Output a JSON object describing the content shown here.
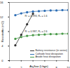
{
  "chart_data": {
    "type": "line",
    "x_label": "Air flow (L/min)",
    "y_label": "Resistance (mΩ)",
    "x": [
      1,
      2,
      3,
      4,
      5,
      6,
      7,
      8,
      9,
      10
    ],
    "series": [
      {
        "name": "Battery resistance (in series)",
        "color": "#333333",
        "marker": "circle",
        "values": [
          4.2,
          7.1,
          10,
          12.9,
          null,
          null,
          null,
          null,
          null,
          null
        ]
      },
      {
        "name": "Cathode heat dissipation",
        "color": "#2f6fb5",
        "marker": "circle",
        "values": [
          12.5,
          13,
          13.3,
          13.5,
          13.6,
          13.7,
          13.8,
          13.8,
          13.9,
          13.9
        ]
      },
      {
        "name": "Anode heat dissipation",
        "color": "#4a9a4a",
        "marker": "circle",
        "values": [
          6,
          6.5,
          6.8,
          7,
          7.1,
          7.2,
          7.3,
          7.3,
          7.4,
          7.4
        ]
      }
    ],
    "annotations": [
      "R² = 0.993, R₀ = 1.6",
      "R² = 0.987, R₀ = 2.6"
    ],
    "xlim": [
      0,
      10
    ],
    "xticks": [
      0,
      2,
      4,
      6,
      8,
      10
    ],
    "ylim": [
      0,
      16
    ],
    "yticks": [
      0,
      4,
      8,
      12,
      16
    ],
    "legend": "bottom-right",
    "grid": false
  }
}
